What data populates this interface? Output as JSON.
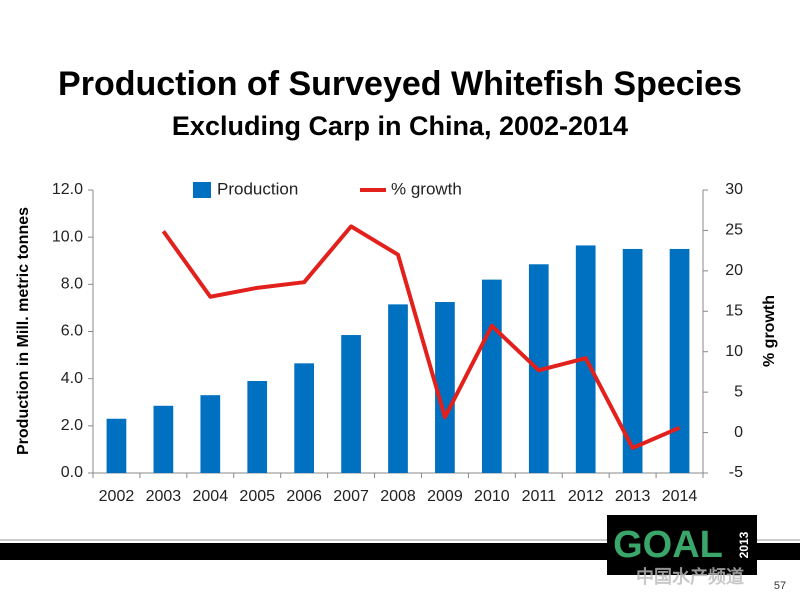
{
  "chart_data": {
    "type": "bar_line",
    "title": "Production of Surveyed Whitefish Species",
    "subtitle": "Excluding Carp in China, 2002-2014",
    "y_label": "Production in Mill. metric tonnes",
    "y2_label": "% growth",
    "categories": [
      "2002",
      "2003",
      "2004",
      "2005",
      "2006",
      "2007",
      "2008",
      "2009",
      "2010",
      "2011",
      "2012",
      "2013",
      "2014"
    ],
    "series": [
      {
        "name": "Production",
        "kind": "bar",
        "color": "#0070c0",
        "values": [
          2.3,
          2.85,
          3.3,
          3.9,
          4.65,
          5.85,
          7.15,
          7.25,
          8.2,
          8.85,
          9.65,
          9.5,
          9.5
        ]
      },
      {
        "name": "% growth",
        "kind": "line",
        "axis": "y2",
        "color": "#e3211c",
        "values": [
          null,
          24.9,
          16.8,
          17.9,
          18.6,
          25.5,
          22.0,
          1.9,
          13.2,
          7.7,
          9.2,
          -1.9,
          0.6
        ]
      }
    ],
    "ylim": [
      0,
      12
    ],
    "yticks": [
      {
        "value": 0,
        "label": "0.0"
      },
      {
        "value": 2,
        "label": "2.0"
      },
      {
        "value": 4,
        "label": "4.0"
      },
      {
        "value": 6,
        "label": "6.0"
      },
      {
        "value": 8,
        "label": "8.0"
      },
      {
        "value": 10,
        "label": "10.0"
      },
      {
        "value": 12,
        "label": "12.0"
      }
    ],
    "y2lim": [
      -5,
      30
    ],
    "y2ticks": [
      -5,
      0,
      5,
      10,
      15,
      20,
      25,
      30
    ],
    "grid": false,
    "legend": "top"
  },
  "footer": {
    "logo": "GOAL",
    "logo_year": "2013",
    "watermark": "中国水产频道",
    "page_number": "57"
  }
}
